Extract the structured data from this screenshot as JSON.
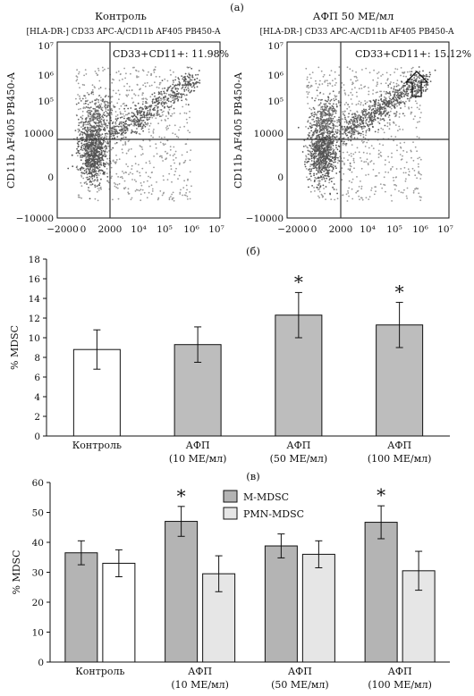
{
  "figure": {
    "panel_a_label": "(а)",
    "panel_b_label": "(б)",
    "panel_c_label": "(в)"
  },
  "chart_data": [
    {
      "type": "scatter",
      "title": "Контроль",
      "subtitle": "[HLA-DR-] CD33 APC-A/CD11b AF405 PB450-A",
      "ylabel": "CD11b AF405 PB450-A",
      "xticks": [
        "−2000",
        "0",
        "2000",
        "10⁴",
        "10⁵",
        "10⁶",
        "10⁷"
      ],
      "yticks": [
        "10⁷",
        "10⁶",
        "10⁵",
        "10000",
        "0",
        "−10000"
      ],
      "gate_x": "2000",
      "gate_y": "10000",
      "annotation": "CD33+CD11+: 11.98%",
      "quadrant_percent": 11.98
    },
    {
      "type": "scatter",
      "title": "АФП 50 МЕ/мл",
      "subtitle": "[HLA-DR-] CD33 APC-A/CD11b AF405 PB450-A",
      "ylabel": "CD11b AF405 PB450-A",
      "xticks": [
        "−2000",
        "0",
        "2000",
        "10⁴",
        "10⁵",
        "10⁶",
        "10⁷"
      ],
      "yticks": [
        "10⁷",
        "10⁶",
        "10⁵",
        "10000",
        "0",
        "−10000"
      ],
      "gate_x": "2000",
      "gate_y": "10000",
      "annotation": "CD33+CD11+: 15.12%",
      "quadrant_percent": 15.12
    },
    {
      "type": "bar",
      "ylabel": "% MDSC",
      "ylim": [
        0,
        18
      ],
      "yticks": [
        "0",
        "2",
        "4",
        "6",
        "8",
        "10",
        "12",
        "14",
        "16",
        "18"
      ],
      "categories": [
        {
          "line1": "Контроль",
          "line2": ""
        },
        {
          "line1": "АФП",
          "line2": "(10 МЕ/мл)"
        },
        {
          "line1": "АФП",
          "line2": "(50 МЕ/мл)"
        },
        {
          "line1": "АФП",
          "line2": "(100 МЕ/мл)"
        }
      ],
      "values": [
        8.8,
        9.3,
        12.3,
        11.3
      ],
      "errors": [
        2.0,
        1.8,
        2.3,
        2.3
      ],
      "fills": [
        "#ffffff",
        "#bdbdbd",
        "#bdbdbd",
        "#bdbdbd"
      ],
      "significance": [
        "",
        "",
        "*",
        "*"
      ]
    },
    {
      "type": "bar",
      "ylabel": "% MDSC",
      "ylim": [
        0,
        60
      ],
      "yticks": [
        "0",
        "10",
        "20",
        "30",
        "40",
        "50",
        "60"
      ],
      "categories": [
        {
          "line1": "Контроль",
          "line2": ""
        },
        {
          "line1": "АФП",
          "line2": "(10 МЕ/мл)"
        },
        {
          "line1": "АФП",
          "line2": "(50 МЕ/мл)"
        },
        {
          "line1": "АФП",
          "line2": "(100 МЕ/мл)"
        }
      ],
      "series": [
        {
          "name": "M-MDSC",
          "color": "#b4b4b4",
          "values": [
            36.5,
            47.0,
            38.8,
            46.7
          ],
          "errors": [
            4.0,
            5.0,
            4.0,
            5.5
          ],
          "significance": [
            "",
            "*",
            "",
            "*"
          ]
        },
        {
          "name": "PMN-MDSC",
          "color": "#e6e6e6",
          "values": [
            33.0,
            29.5,
            36.0,
            30.5
          ],
          "errors": [
            4.5,
            6.0,
            4.5,
            6.5
          ],
          "significance": [
            "",
            "",
            "",
            ""
          ]
        }
      ],
      "legend": "top-center"
    }
  ]
}
